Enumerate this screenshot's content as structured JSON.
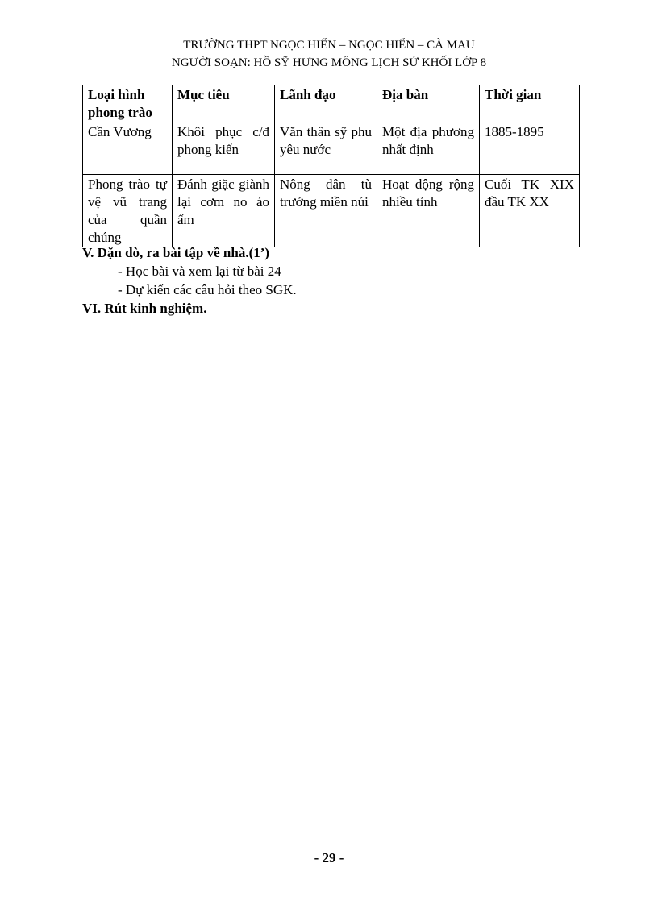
{
  "header": {
    "line1": "TRƯỜNG THPT NGỌC HIỂN – NGỌC HIỂN – CÀ MAU",
    "line2": "NGƯỜI SOẠN: HỒ SỸ HƯNG MÔNG LỊCH SỬ KHỐI LỚP 8"
  },
  "table": {
    "columns": [
      "Loại hình phong trào",
      "Mục tiêu",
      "Lãnh đạo",
      "Địa bàn",
      "Thời gian"
    ],
    "rows": [
      [
        "Cần Vương",
        "Khôi phục c/đ phong kiến",
        "Văn thân sỹ phu yêu nước",
        "Một địa phương nhất định",
        "1885-1895"
      ],
      [
        "Phong trào tự vệ vũ trang của quần chúng",
        "Đánh giặc giành lại cơm no áo ấm",
        "Nông dân tù trưởng miền núi",
        "Hoạt động rộng nhiều tỉnh",
        "Cuối TK XIX đầu TK XX"
      ]
    ]
  },
  "section5": {
    "title": "V. Dặn dò, ra bài tập về nhà.(1’)",
    "items": [
      "- Học bài và xem lại từ bài 24",
      "- Dự kiến các câu hỏi theo SGK."
    ]
  },
  "section6": {
    "title": "VI. Rút kinh nghiệm."
  },
  "page_number": "- 29 -"
}
